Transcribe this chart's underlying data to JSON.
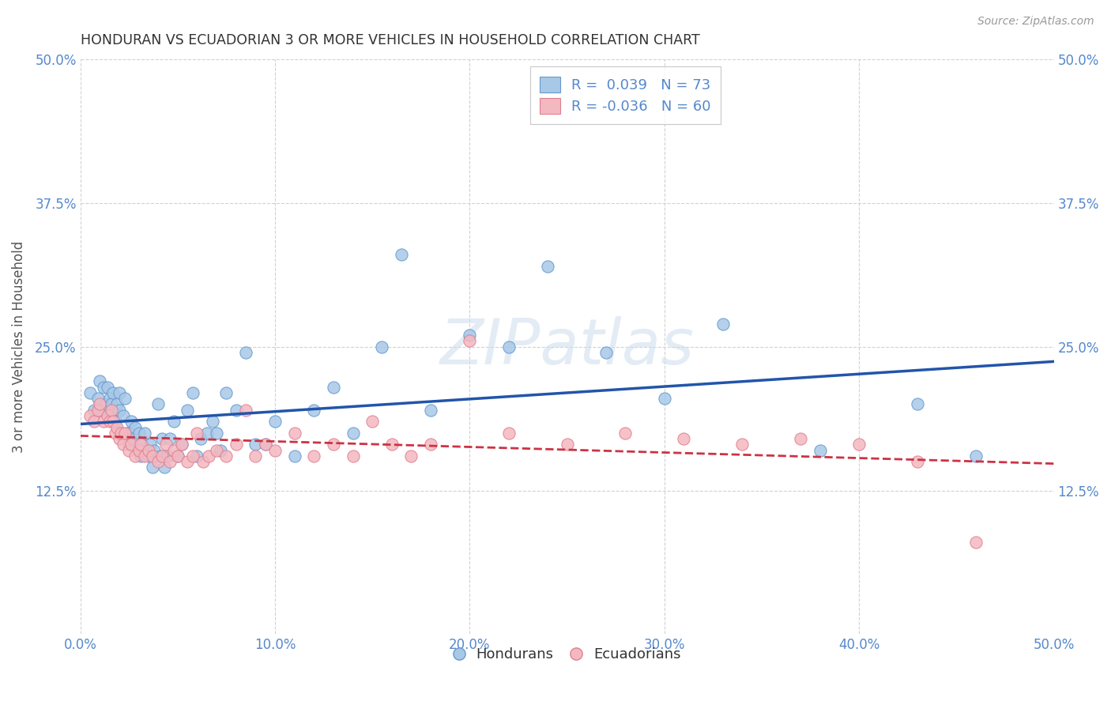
{
  "title": "HONDURAN VS ECUADORIAN 3 OR MORE VEHICLES IN HOUSEHOLD CORRELATION CHART",
  "source": "Source: ZipAtlas.com",
  "ylabel": "3 or more Vehicles in Household",
  "xlim": [
    0.0,
    0.5
  ],
  "ylim": [
    0.0,
    0.5
  ],
  "xticks": [
    0.0,
    0.1,
    0.2,
    0.3,
    0.4,
    0.5
  ],
  "yticks": [
    0.125,
    0.25,
    0.375,
    0.5
  ],
  "xticklabels": [
    "0.0%",
    "10.0%",
    "20.0%",
    "30.0%",
    "40.0%",
    "50.0%"
  ],
  "yticklabels": [
    "12.5%",
    "25.0%",
    "37.5%",
    "50.0%"
  ],
  "hondurans_color": "#a8c8e8",
  "ecuadorians_color": "#f4b8c0",
  "hondurans_edge_color": "#6699cc",
  "ecuadorians_edge_color": "#e08090",
  "trendline_hondurans_color": "#2255aa",
  "trendline_ecuadorians_color": "#cc3344",
  "background_color": "#ffffff",
  "grid_color": "#cccccc",
  "title_color": "#333333",
  "axis_label_color": "#555555",
  "tick_color": "#5588cc",
  "R_hondurans": 0.039,
  "N_hondurans": 73,
  "R_ecuadorians": -0.036,
  "N_ecuadorians": 60,
  "legend_labels": [
    "Hondurans",
    "Ecuadorians"
  ],
  "hondurans_x": [
    0.005,
    0.007,
    0.009,
    0.01,
    0.01,
    0.012,
    0.013,
    0.014,
    0.015,
    0.015,
    0.016,
    0.017,
    0.018,
    0.019,
    0.02,
    0.02,
    0.021,
    0.022,
    0.023,
    0.024,
    0.025,
    0.025,
    0.026,
    0.027,
    0.028,
    0.03,
    0.03,
    0.031,
    0.032,
    0.033,
    0.035,
    0.036,
    0.037,
    0.038,
    0.04,
    0.041,
    0.042,
    0.043,
    0.045,
    0.046,
    0.048,
    0.05,
    0.052,
    0.055,
    0.058,
    0.06,
    0.062,
    0.065,
    0.068,
    0.07,
    0.072,
    0.075,
    0.08,
    0.085,
    0.09,
    0.095,
    0.1,
    0.11,
    0.12,
    0.13,
    0.14,
    0.155,
    0.165,
    0.18,
    0.2,
    0.22,
    0.24,
    0.27,
    0.3,
    0.33,
    0.38,
    0.43,
    0.46
  ],
  "hondurans_y": [
    0.21,
    0.195,
    0.205,
    0.22,
    0.195,
    0.215,
    0.2,
    0.215,
    0.19,
    0.205,
    0.2,
    0.21,
    0.185,
    0.2,
    0.195,
    0.21,
    0.175,
    0.19,
    0.205,
    0.175,
    0.165,
    0.175,
    0.185,
    0.17,
    0.18,
    0.16,
    0.175,
    0.155,
    0.165,
    0.175,
    0.155,
    0.165,
    0.145,
    0.16,
    0.2,
    0.155,
    0.17,
    0.145,
    0.155,
    0.17,
    0.185,
    0.155,
    0.165,
    0.195,
    0.21,
    0.155,
    0.17,
    0.175,
    0.185,
    0.175,
    0.16,
    0.21,
    0.195,
    0.245,
    0.165,
    0.165,
    0.185,
    0.155,
    0.195,
    0.215,
    0.175,
    0.25,
    0.33,
    0.195,
    0.26,
    0.25,
    0.32,
    0.245,
    0.205,
    0.27,
    0.16,
    0.2,
    0.155
  ],
  "ecuadorians_x": [
    0.005,
    0.007,
    0.009,
    0.01,
    0.012,
    0.014,
    0.015,
    0.016,
    0.017,
    0.018,
    0.019,
    0.02,
    0.021,
    0.022,
    0.023,
    0.025,
    0.026,
    0.028,
    0.03,
    0.031,
    0.033,
    0.035,
    0.037,
    0.04,
    0.042,
    0.044,
    0.046,
    0.048,
    0.05,
    0.052,
    0.055,
    0.058,
    0.06,
    0.063,
    0.066,
    0.07,
    0.075,
    0.08,
    0.085,
    0.09,
    0.095,
    0.1,
    0.11,
    0.12,
    0.13,
    0.14,
    0.15,
    0.16,
    0.17,
    0.18,
    0.2,
    0.22,
    0.25,
    0.28,
    0.31,
    0.34,
    0.37,
    0.4,
    0.43,
    0.46
  ],
  "ecuadorians_y": [
    0.19,
    0.185,
    0.195,
    0.2,
    0.185,
    0.19,
    0.185,
    0.195,
    0.185,
    0.175,
    0.18,
    0.17,
    0.175,
    0.165,
    0.175,
    0.16,
    0.165,
    0.155,
    0.16,
    0.165,
    0.155,
    0.16,
    0.155,
    0.15,
    0.155,
    0.165,
    0.15,
    0.16,
    0.155,
    0.165,
    0.15,
    0.155,
    0.175,
    0.15,
    0.155,
    0.16,
    0.155,
    0.165,
    0.195,
    0.155,
    0.165,
    0.16,
    0.175,
    0.155,
    0.165,
    0.155,
    0.185,
    0.165,
    0.155,
    0.165,
    0.255,
    0.175,
    0.165,
    0.175,
    0.17,
    0.165,
    0.17,
    0.165,
    0.15,
    0.08
  ]
}
